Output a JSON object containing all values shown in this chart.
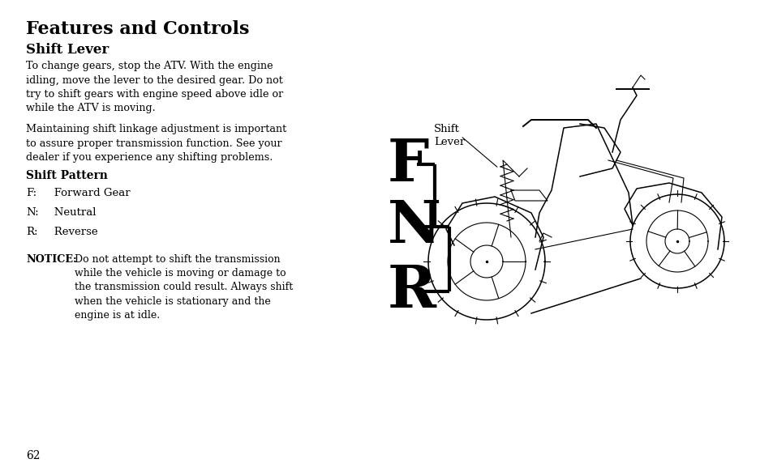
{
  "bg_color": "#ffffff",
  "title": "Features and Controls",
  "subtitle": "Shift Lever",
  "para1": "To change gears, stop the ATV. With the engine\nidling, move the lever to the desired gear. Do not\ntry to shift gears with engine speed above idle or\nwhile the ATV is moving.",
  "para2": "Maintaining shift linkage adjustment is important\nto assure proper transmission function. See your\ndealer if you experience any shifting problems.",
  "shift_pattern_label": "Shift Pattern",
  "shift_items": [
    {
      "key": "F:",
      "value": "   Forward Gear"
    },
    {
      "key": "N:",
      "value": "   Neutral"
    },
    {
      "key": "R:",
      "value": "   Reverse"
    }
  ],
  "notice_label": "NOTICE:",
  "notice_text": " Do not attempt to shift the transmission\n while the vehicle is moving or damage to\n the transmission could result. Always shift\n when the vehicle is stationary and the\n engine is at idle.",
  "page_num": "62",
  "shift_lever_label": "Shift\nLever",
  "fnr_letters": [
    "F",
    "N",
    "R"
  ],
  "fnr_fontsize": 52,
  "bracket_lw": 3.0
}
